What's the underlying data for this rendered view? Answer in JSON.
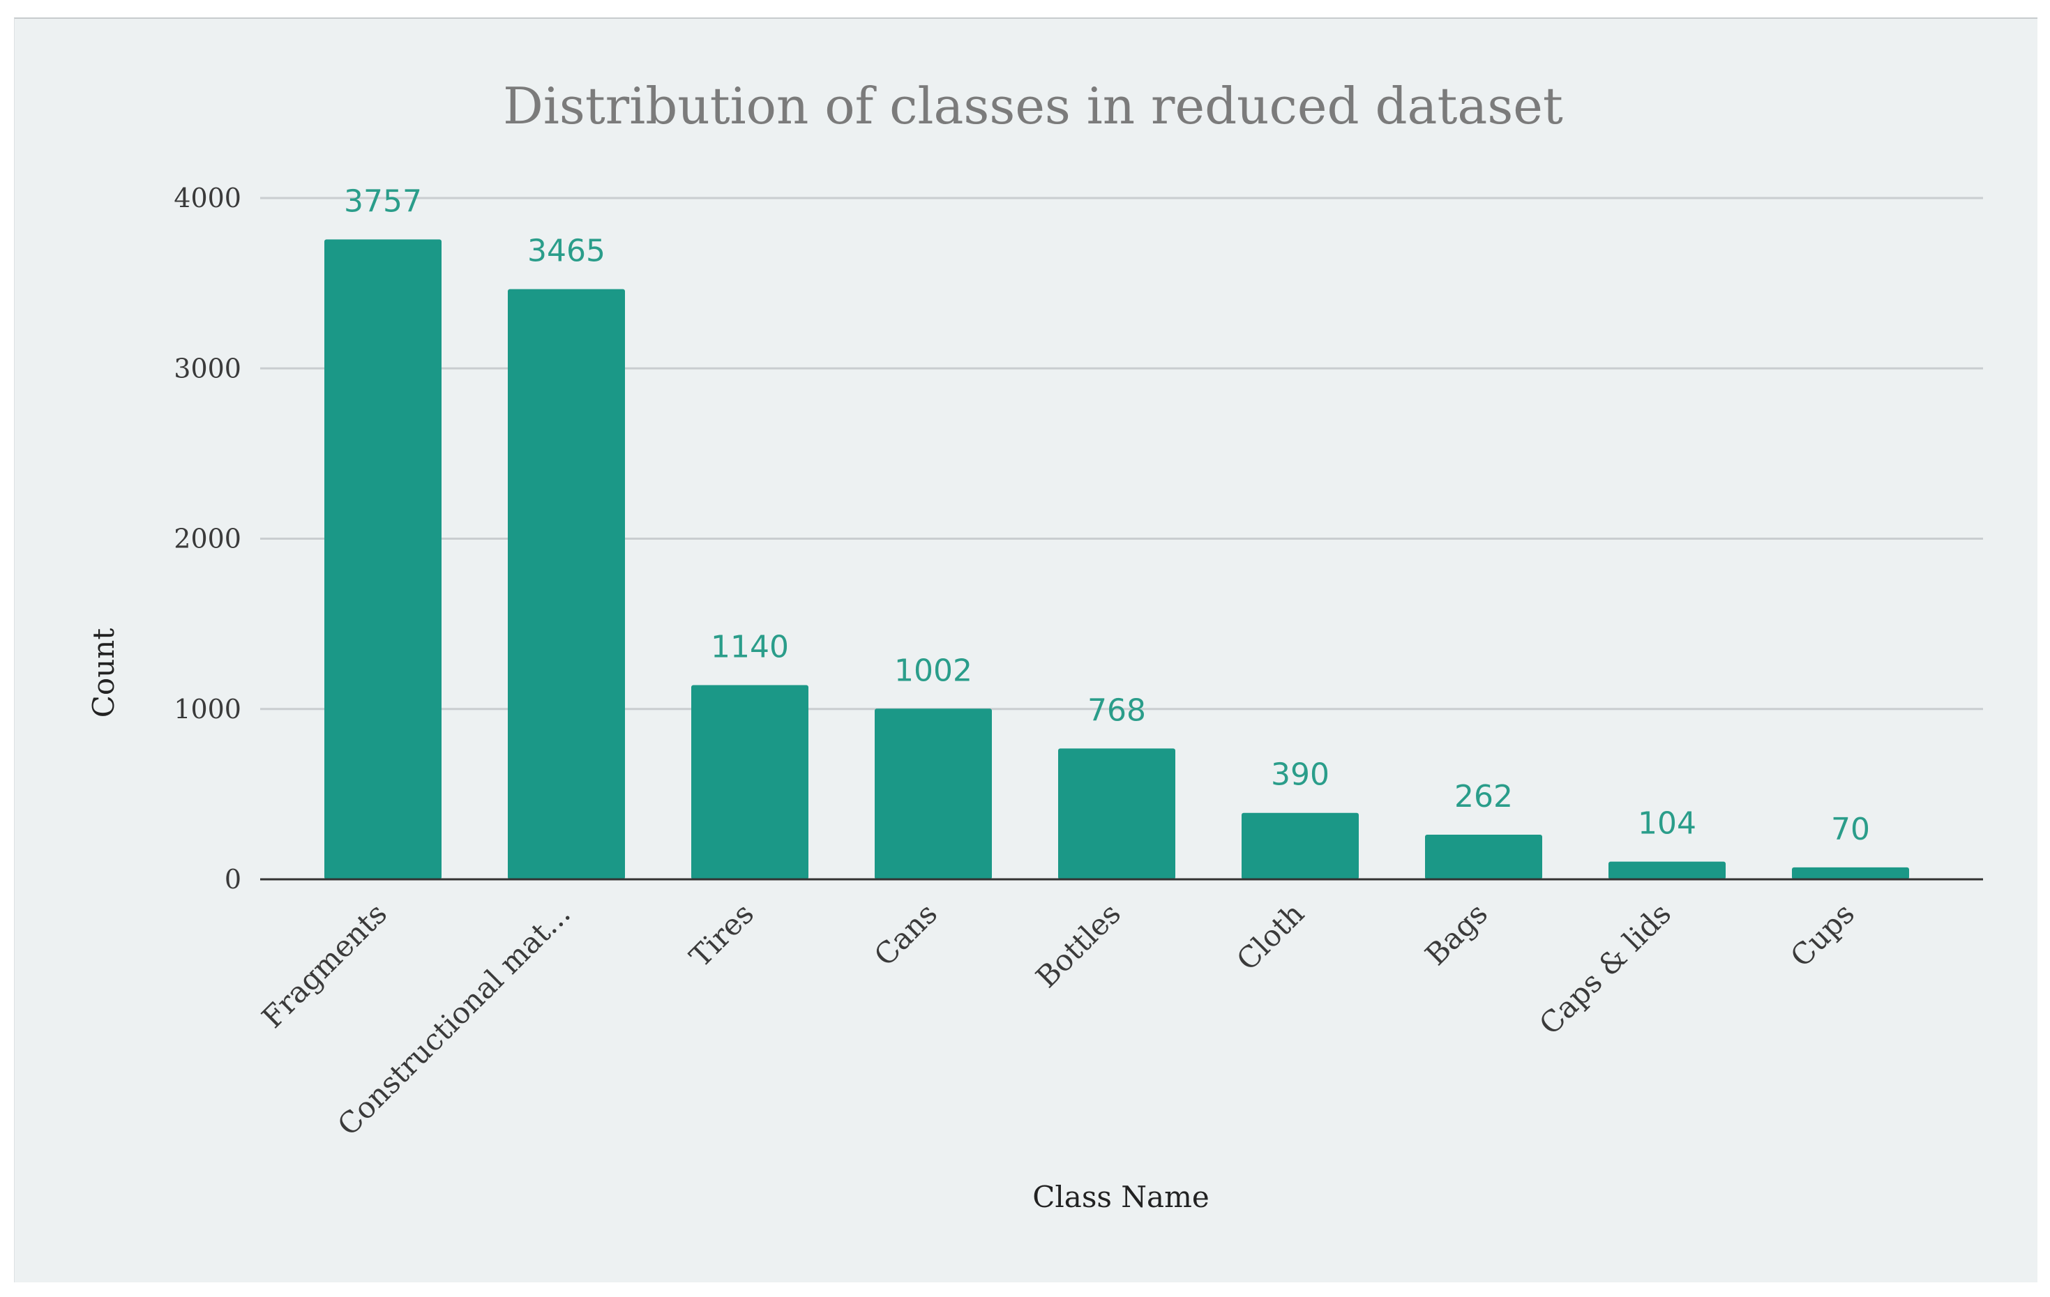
{
  "chart_data": {
    "type": "bar",
    "title": "Distribution of classes in reduced dataset",
    "xlabel": "Class Name",
    "ylabel": "Count",
    "categories": [
      "Fragments",
      "Constructional mat...",
      "Tires",
      "Cans",
      "Bottles",
      "Cloth",
      "Bags",
      "Caps & lids",
      "Cups"
    ],
    "values": [
      3757,
      3465,
      1140,
      1002,
      768,
      390,
      262,
      104,
      70
    ],
    "data_labels": [
      "3757",
      "3465",
      "1140",
      "1002",
      "768",
      "390",
      "262",
      "104",
      "70"
    ],
    "ylim": [
      0,
      4000
    ],
    "yticks": [
      0,
      1000,
      2000,
      3000,
      4000
    ],
    "ytick_labels": [
      "0",
      "1000",
      "2000",
      "3000",
      "4000"
    ],
    "grid": true,
    "bar_color": "#1b9887",
    "label_color": "#2a9d8a"
  }
}
